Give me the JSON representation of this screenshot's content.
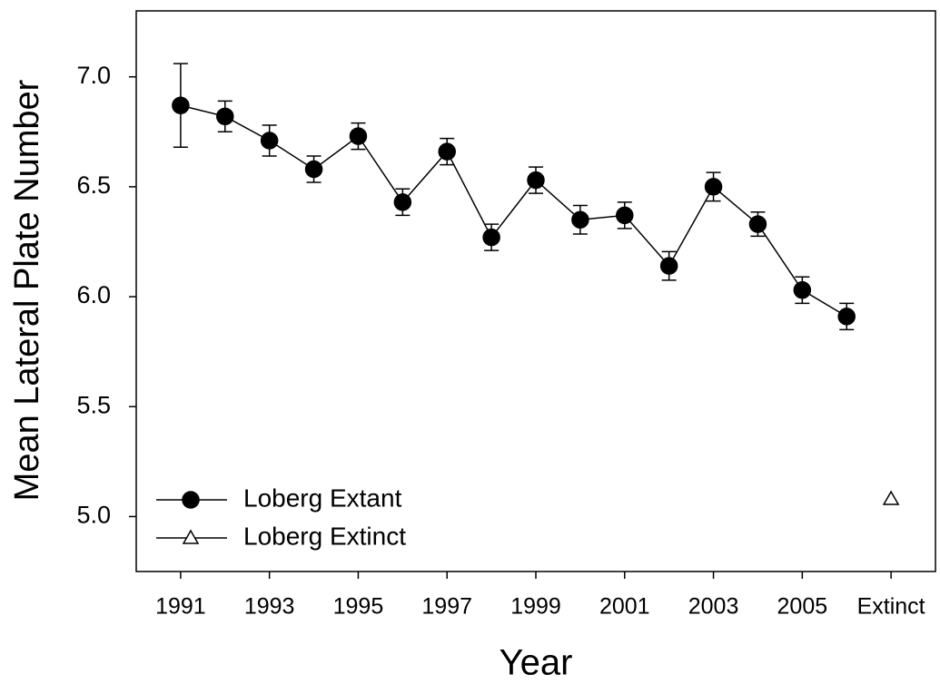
{
  "chart_data": {
    "type": "line",
    "xlabel": "Year",
    "ylabel": "Mean Lateral Plate Number",
    "categories": [
      "1991",
      null,
      "1993",
      null,
      "1995",
      null,
      "1997",
      null,
      "1999",
      null,
      "2001",
      null,
      "2003",
      null,
      "2005",
      null,
      "Extinct"
    ],
    "series": [
      {
        "name": "Loberg Extant",
        "color": "#000000",
        "marker": "circle",
        "filled": true,
        "values": [
          6.87,
          6.82,
          6.71,
          6.58,
          6.73,
          6.43,
          6.66,
          6.27,
          6.53,
          6.35,
          6.37,
          6.14,
          6.5,
          6.33,
          6.03,
          5.91,
          null
        ],
        "errors": [
          0.19,
          0.07,
          0.07,
          0.06,
          0.06,
          0.06,
          0.06,
          0.06,
          0.06,
          0.065,
          0.06,
          0.065,
          0.065,
          0.055,
          0.06,
          0.06,
          null
        ]
      },
      {
        "name": "Loberg Extinct",
        "color": "#000000",
        "marker": "triangle",
        "filled": false,
        "values": [
          null,
          null,
          null,
          null,
          null,
          null,
          null,
          null,
          null,
          null,
          null,
          null,
          null,
          null,
          null,
          null,
          5.08
        ]
      }
    ],
    "ylim": [
      4.75,
      7.3
    ],
    "yticks": [
      {
        "value": 5,
        "label": "5.0"
      },
      5.5,
      {
        "value": 6,
        "label": "6.0"
      },
      6.5,
      {
        "value": 7,
        "label": "7.0"
      }
    ],
    "grid": false,
    "legend": "lower left"
  }
}
